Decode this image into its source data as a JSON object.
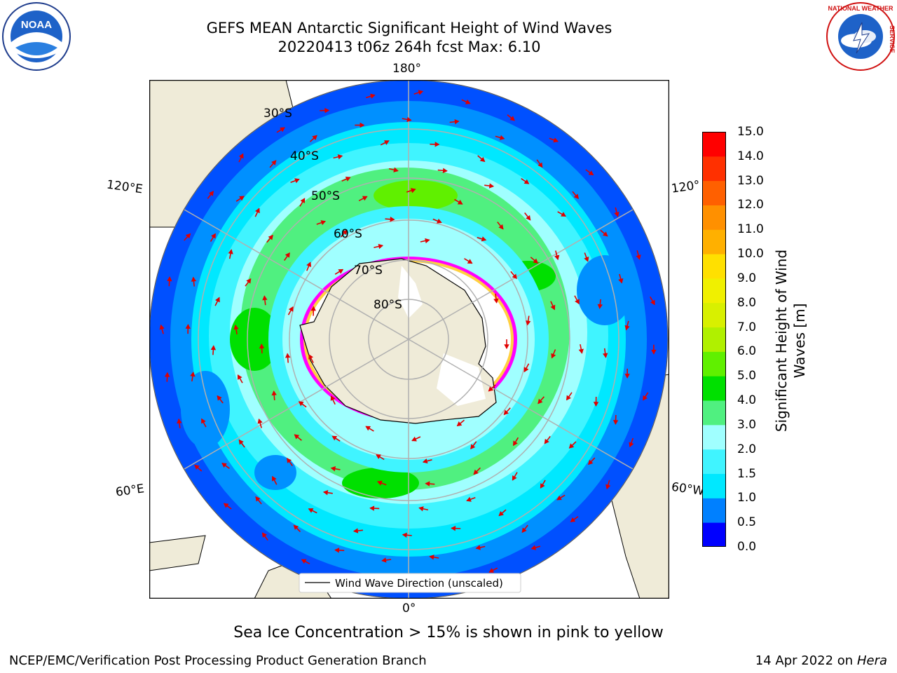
{
  "title": {
    "line1": "GEFS MEAN Antarctic Significant Height of Wind Waves",
    "line2": "20220413 t06z 264h fcst   Max: 6.10"
  },
  "map": {
    "projection": "south-polar-stereographic",
    "longitude_labels": [
      "180°",
      "120°E",
      "120°",
      "60°E",
      "60°W",
      "0°"
    ],
    "latitude_labels": [
      "30°S",
      "40°S",
      "50°S",
      "60°S",
      "70°S",
      "80°S"
    ],
    "land_color": "#efebd8",
    "ice_edge_colors": [
      "#ff00ff",
      "#ffd040"
    ],
    "arrow_color": "#e00000",
    "legend": "Wind Wave Direction (unscaled)"
  },
  "colorbar": {
    "label": "Significant Height of Wind Waves [m]",
    "ticks": [
      "0.0",
      "0.5",
      "1.0",
      "1.5",
      "2.0",
      "3.0",
      "4.0",
      "5.0",
      "6.0",
      "7.0",
      "8.0",
      "9.0",
      "10.0",
      "11.0",
      "12.0",
      "13.0",
      "14.0",
      "15.0"
    ],
    "colors": [
      "#0000ff",
      "#0080ff",
      "#00e8ff",
      "#40f4ff",
      "#a0ffff",
      "#50f080",
      "#00e000",
      "#60f000",
      "#b0f000",
      "#d8f000",
      "#f0f000",
      "#ffe000",
      "#ffb000",
      "#ff9000",
      "#ff6000",
      "#ff3000",
      "#ff0000"
    ]
  },
  "footnote": "Sea Ice Concentration > 15% is shown in pink to yellow",
  "footer": {
    "left": "NCEP/EMC/Verification Post Processing Product Generation Branch",
    "date": "14 Apr 2022 on",
    "machine": "Hera"
  },
  "logos": {
    "left": "NOAA",
    "right_top": "NATIONAL WEATHER",
    "right_side": "SERVICE"
  }
}
